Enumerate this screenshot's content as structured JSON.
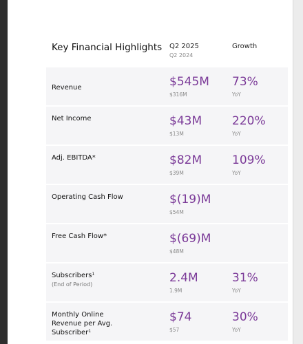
{
  "header": {
    "title": "Key Financial Highlights",
    "current_period": "Q2 2025",
    "prior_period": "Q2 2024",
    "growth": "Growth"
  },
  "table": {
    "rows": [
      {
        "label": "Revenue",
        "value": "$545M",
        "prior_value": "$316M",
        "growth": "73%",
        "growth_basis": "YoY"
      },
      {
        "label": "Net Income",
        "value": "$43M",
        "prior_value": "$13M",
        "growth": "220%",
        "growth_basis": "YoY"
      },
      {
        "label": "Adj. EBITDA*",
        "value": "$82M",
        "prior_value": "$39M",
        "growth": "109%",
        "growth_basis": "YoY"
      },
      {
        "label": "Operating Cash Flow",
        "value": "$(19)M",
        "prior_value": "$54M"
      },
      {
        "label": "Free Cash Flow*",
        "value": "$(69)M",
        "prior_value": "$48M"
      },
      {
        "label": "Subscribers",
        "footnote": "1",
        "sublabel": "(End of Period)",
        "value": "2.4M",
        "prior_value": "1.9M",
        "growth": "31%",
        "growth_basis": "YoY"
      },
      {
        "label": "Monthly Online Revenue per Avg. Subscriber",
        "footnote": "1",
        "value": "$74",
        "prior_value": "$57",
        "growth": "30%",
        "growth_basis": "YoY"
      }
    ]
  }
}
